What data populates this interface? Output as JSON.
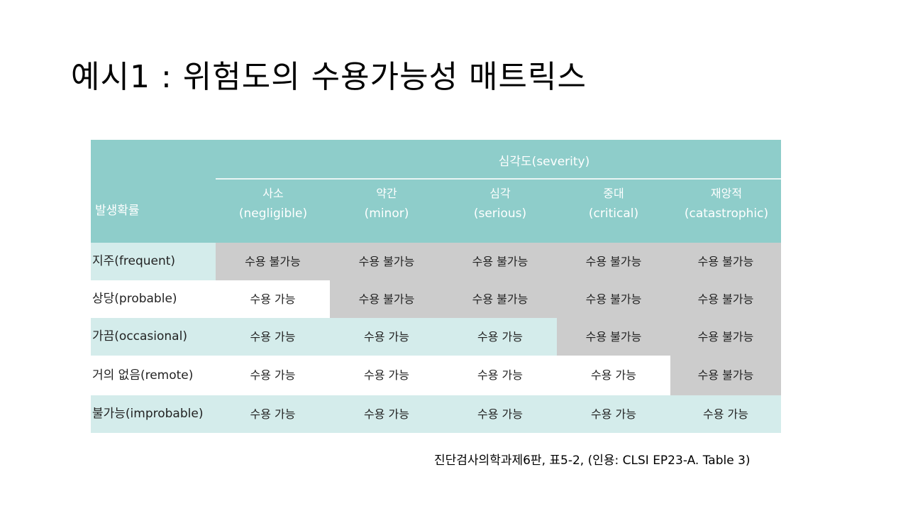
{
  "slide": {
    "title": "예시1 : 위험도의 수용가능성 매트릭스",
    "citation": "진단검사의학과제6판, 표5-2, (인용: CLSI EP23-A. Table 3)"
  },
  "matrix": {
    "severity_title": "심각도(severity)",
    "probability_label": "발생확률",
    "columns": [
      {
        "ko": "사소",
        "en": "(negligible)"
      },
      {
        "ko": "약간",
        "en": "(minor)"
      },
      {
        "ko": "심각",
        "en": "(serious)"
      },
      {
        "ko": "중대",
        "en": "(critical)"
      },
      {
        "ko": "재앙적",
        "en": "(catastrophic)"
      }
    ],
    "rows": [
      {
        "label": "지주(frequent)",
        "cells": [
          "수용 불가능",
          "수용 불가능",
          "수용 불가능",
          "수용 불가능",
          "수용 불가능"
        ]
      },
      {
        "label": "상당(probable)",
        "cells": [
          "수용 가능",
          "수용 불가능",
          "수용 불가능",
          "수용 불가능",
          "수용 불가능"
        ]
      },
      {
        "label": "가끔(occasional)",
        "cells": [
          "수용 가능",
          "수용 가능",
          "수용 가능",
          "수용 불가능",
          "수용 불가능"
        ]
      },
      {
        "label": "거의 없음(remote)",
        "cells": [
          "수용 가능",
          "수용 가능",
          "수용 가능",
          "수용 가능",
          "수용 불가능"
        ]
      },
      {
        "label": "불가능(improbable)",
        "cells": [
          "수용 가능",
          "수용 가능",
          "수용 가능",
          "수용 가능",
          "수용 가능"
        ]
      }
    ]
  }
}
